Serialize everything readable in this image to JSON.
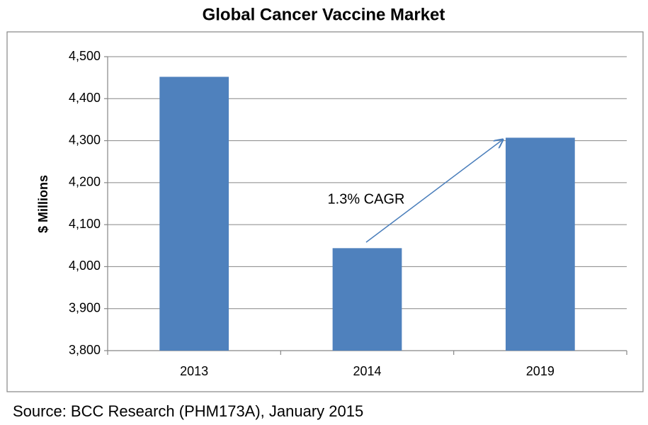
{
  "chart_data": {
    "type": "bar",
    "title": "Global Cancer Vaccine Market",
    "y_label": "$ Millions",
    "categories": [
      "2013",
      "2014",
      "2019"
    ],
    "values": [
      4452,
      4044,
      4307
    ],
    "color": "#4f81bd",
    "ylim": [
      3800,
      4500
    ],
    "yticks": [
      {
        "value": 3800,
        "label": "3,800"
      },
      {
        "value": 3900,
        "label": "3,900"
      },
      {
        "value": 4000,
        "label": "4,000"
      },
      {
        "value": 4100,
        "label": "4,100"
      },
      {
        "value": 4200,
        "label": "4,200"
      },
      {
        "value": 4300,
        "label": "4,300"
      },
      {
        "value": 4400,
        "label": "4,400"
      },
      {
        "value": 4500,
        "label": "4,500"
      }
    ],
    "grid": true,
    "annotation": "1.3% CAGR",
    "source": "Source: BCC Research (PHM173A), January 2015"
  }
}
